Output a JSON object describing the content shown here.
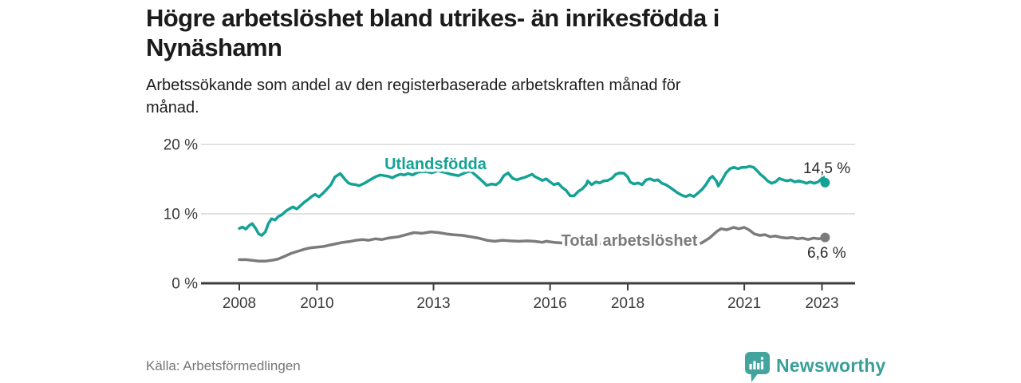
{
  "header": {
    "title": "Högre arbetslöshet bland utrikes- än inrikesfödda i\nNynäshamn",
    "subtitle": "Arbetssökande som andel av den registerbaserade arbetskraften månad för\nmånad."
  },
  "chart_data": {
    "type": "line",
    "unit": "%",
    "grid": "horizontal-only",
    "x_axis": {
      "range": [
        2007.0,
        2023.9
      ],
      "ticks": [
        2008,
        2010,
        2013,
        2016,
        2018,
        2021,
        2023
      ]
    },
    "y_axis": {
      "range": [
        0,
        21
      ],
      "ticks": [
        {
          "value": 0,
          "label": "0 %"
        },
        {
          "value": 10,
          "label": "10 %"
        },
        {
          "value": 20,
          "label": "20 %"
        }
      ]
    },
    "series": [
      {
        "name": "Utlandsfödda",
        "color": "#14a295",
        "end_label": "14,5 %",
        "end_value": 14.5,
        "points": [
          [
            2008.0,
            7.9
          ],
          [
            2008.08,
            8.1
          ],
          [
            2008.17,
            7.8
          ],
          [
            2008.25,
            8.3
          ],
          [
            2008.33,
            8.6
          ],
          [
            2008.42,
            7.9
          ],
          [
            2008.5,
            7.1
          ],
          [
            2008.58,
            6.9
          ],
          [
            2008.67,
            7.4
          ],
          [
            2008.75,
            8.6
          ],
          [
            2008.83,
            9.3
          ],
          [
            2008.92,
            9.1
          ],
          [
            2009.0,
            9.6
          ],
          [
            2009.1,
            9.9
          ],
          [
            2009.2,
            10.4
          ],
          [
            2009.27,
            10.65
          ],
          [
            2009.38,
            11.0
          ],
          [
            2009.48,
            10.7
          ],
          [
            2009.58,
            11.2
          ],
          [
            2009.68,
            11.7
          ],
          [
            2009.78,
            12.1
          ],
          [
            2009.85,
            12.45
          ],
          [
            2009.95,
            12.8
          ],
          [
            2010.05,
            12.45
          ],
          [
            2010.16,
            13.0
          ],
          [
            2010.26,
            13.6
          ],
          [
            2010.36,
            14.2
          ],
          [
            2010.46,
            15.3
          ],
          [
            2010.6,
            15.8
          ],
          [
            2010.73,
            14.9
          ],
          [
            2010.81,
            14.45
          ],
          [
            2010.87,
            14.3
          ],
          [
            2011.0,
            14.2
          ],
          [
            2011.08,
            14.05
          ],
          [
            2011.22,
            14.4
          ],
          [
            2011.32,
            14.75
          ],
          [
            2011.43,
            15.1
          ],
          [
            2011.53,
            15.4
          ],
          [
            2011.63,
            15.6
          ],
          [
            2011.74,
            15.5
          ],
          [
            2011.84,
            15.4
          ],
          [
            2011.94,
            15.2
          ],
          [
            2012.04,
            15.5
          ],
          [
            2012.15,
            15.7
          ],
          [
            2012.25,
            15.6
          ],
          [
            2012.35,
            15.8
          ],
          [
            2012.46,
            15.6
          ],
          [
            2012.6,
            16.0
          ],
          [
            2012.8,
            16.1
          ],
          [
            2012.95,
            15.9
          ],
          [
            2013.1,
            16.2
          ],
          [
            2013.27,
            16.0
          ],
          [
            2013.45,
            15.7
          ],
          [
            2013.64,
            15.5
          ],
          [
            2013.8,
            15.9
          ],
          [
            2013.95,
            16.2
          ],
          [
            2014.1,
            15.5
          ],
          [
            2014.22,
            14.9
          ],
          [
            2014.37,
            14.1
          ],
          [
            2014.5,
            14.3
          ],
          [
            2014.61,
            14.2
          ],
          [
            2014.71,
            14.6
          ],
          [
            2014.81,
            15.5
          ],
          [
            2014.92,
            15.9
          ],
          [
            2015.04,
            15.1
          ],
          [
            2015.15,
            14.9
          ],
          [
            2015.25,
            15.1
          ],
          [
            2015.35,
            15.25
          ],
          [
            2015.45,
            15.5
          ],
          [
            2015.54,
            15.7
          ],
          [
            2015.6,
            15.4
          ],
          [
            2015.7,
            15.1
          ],
          [
            2015.8,
            14.8
          ],
          [
            2015.9,
            15.05
          ],
          [
            2016.0,
            14.6
          ],
          [
            2016.1,
            14.2
          ],
          [
            2016.21,
            14.4
          ],
          [
            2016.31,
            13.8
          ],
          [
            2016.41,
            13.4
          ],
          [
            2016.52,
            12.6
          ],
          [
            2016.62,
            12.6
          ],
          [
            2016.72,
            13.2
          ],
          [
            2016.83,
            13.6
          ],
          [
            2016.93,
            14.2
          ],
          [
            2016.97,
            14.75
          ],
          [
            2017.07,
            14.2
          ],
          [
            2017.18,
            14.6
          ],
          [
            2017.28,
            14.45
          ],
          [
            2017.38,
            14.75
          ],
          [
            2017.48,
            14.8
          ],
          [
            2017.59,
            15.1
          ],
          [
            2017.69,
            15.7
          ],
          [
            2017.79,
            15.9
          ],
          [
            2017.9,
            15.85
          ],
          [
            2018.0,
            15.3
          ],
          [
            2018.06,
            14.6
          ],
          [
            2018.16,
            14.3
          ],
          [
            2018.27,
            14.45
          ],
          [
            2018.37,
            14.2
          ],
          [
            2018.47,
            14.9
          ],
          [
            2018.57,
            15.05
          ],
          [
            2018.68,
            14.8
          ],
          [
            2018.78,
            14.9
          ],
          [
            2018.88,
            14.4
          ],
          [
            2018.98,
            14.2
          ],
          [
            2019.09,
            13.8
          ],
          [
            2019.19,
            13.4
          ],
          [
            2019.29,
            13.0
          ],
          [
            2019.4,
            12.65
          ],
          [
            2019.5,
            12.5
          ],
          [
            2019.6,
            12.75
          ],
          [
            2019.7,
            12.5
          ],
          [
            2019.81,
            13.0
          ],
          [
            2019.91,
            13.5
          ],
          [
            2020.01,
            14.2
          ],
          [
            2020.11,
            15.1
          ],
          [
            2020.18,
            15.4
          ],
          [
            2020.28,
            14.75
          ],
          [
            2020.33,
            14.0
          ],
          [
            2020.43,
            14.9
          ],
          [
            2020.53,
            15.9
          ],
          [
            2020.63,
            16.5
          ],
          [
            2020.73,
            16.7
          ],
          [
            2020.84,
            16.5
          ],
          [
            2020.94,
            16.7
          ],
          [
            2021.04,
            16.7
          ],
          [
            2021.14,
            16.85
          ],
          [
            2021.24,
            16.7
          ],
          [
            2021.35,
            16.1
          ],
          [
            2021.41,
            15.7
          ],
          [
            2021.5,
            15.3
          ],
          [
            2021.6,
            14.75
          ],
          [
            2021.7,
            14.4
          ],
          [
            2021.8,
            14.6
          ],
          [
            2021.9,
            15.1
          ],
          [
            2022.0,
            14.9
          ],
          [
            2022.1,
            14.75
          ],
          [
            2022.2,
            14.9
          ],
          [
            2022.3,
            14.6
          ],
          [
            2022.4,
            14.75
          ],
          [
            2022.5,
            14.6
          ],
          [
            2022.6,
            14.4
          ],
          [
            2022.7,
            14.6
          ],
          [
            2022.8,
            14.4
          ],
          [
            2022.9,
            14.6
          ],
          [
            2023.0,
            15.1
          ],
          [
            2023.04,
            15.3
          ],
          [
            2023.08,
            14.5
          ]
        ]
      },
      {
        "name": "Total arbetslöshet",
        "color": "#7b7b7b",
        "end_label": "6,6 %",
        "end_value": 6.6,
        "points": [
          [
            2008.0,
            3.4
          ],
          [
            2008.17,
            3.4
          ],
          [
            2008.33,
            3.3
          ],
          [
            2008.5,
            3.2
          ],
          [
            2008.67,
            3.2
          ],
          [
            2008.83,
            3.3
          ],
          [
            2009.0,
            3.5
          ],
          [
            2009.17,
            3.9
          ],
          [
            2009.33,
            4.3
          ],
          [
            2009.5,
            4.6
          ],
          [
            2009.67,
            4.9
          ],
          [
            2009.83,
            5.1
          ],
          [
            2010.0,
            5.2
          ],
          [
            2010.17,
            5.3
          ],
          [
            2010.33,
            5.5
          ],
          [
            2010.5,
            5.7
          ],
          [
            2010.67,
            5.9
          ],
          [
            2010.83,
            6.0
          ],
          [
            2011.0,
            6.2
          ],
          [
            2011.17,
            6.3
          ],
          [
            2011.33,
            6.2
          ],
          [
            2011.5,
            6.4
          ],
          [
            2011.67,
            6.3
          ],
          [
            2011.83,
            6.5
          ],
          [
            2012.1,
            6.7
          ],
          [
            2012.3,
            7.0
          ],
          [
            2012.5,
            7.3
          ],
          [
            2012.7,
            7.2
          ],
          [
            2012.93,
            7.4
          ],
          [
            2013.13,
            7.3
          ],
          [
            2013.34,
            7.1
          ],
          [
            2013.5,
            7.0
          ],
          [
            2013.75,
            6.9
          ],
          [
            2013.95,
            6.7
          ],
          [
            2014.16,
            6.5
          ],
          [
            2014.37,
            6.2
          ],
          [
            2014.57,
            6.05
          ],
          [
            2014.78,
            6.2
          ],
          [
            2014.98,
            6.1
          ],
          [
            2015.2,
            6.05
          ],
          [
            2015.4,
            6.1
          ],
          [
            2015.6,
            6.05
          ],
          [
            2015.8,
            5.9
          ],
          [
            2015.9,
            6.05
          ],
          [
            2016.1,
            5.9
          ],
          [
            2016.3,
            5.8
          ],
          [
            2016.5,
            5.7
          ],
          [
            2016.7,
            5.8
          ],
          [
            2016.9,
            5.9
          ],
          [
            2017.1,
            5.8
          ],
          [
            2017.3,
            5.7
          ],
          [
            2017.5,
            5.8
          ],
          [
            2017.7,
            5.9
          ],
          [
            2017.9,
            5.8
          ],
          [
            2018.1,
            5.7
          ],
          [
            2018.3,
            5.6
          ],
          [
            2018.5,
            5.5
          ],
          [
            2018.7,
            5.6
          ],
          [
            2018.9,
            5.5
          ],
          [
            2019.1,
            5.4
          ],
          [
            2019.3,
            5.3
          ],
          [
            2019.5,
            5.4
          ],
          [
            2019.7,
            5.5
          ],
          [
            2019.9,
            5.8
          ],
          [
            2020.1,
            6.5
          ],
          [
            2020.3,
            7.5
          ],
          [
            2020.4,
            7.85
          ],
          [
            2020.55,
            7.7
          ],
          [
            2020.72,
            8.05
          ],
          [
            2020.86,
            7.85
          ],
          [
            2021.0,
            8.05
          ],
          [
            2021.12,
            7.7
          ],
          [
            2021.26,
            7.1
          ],
          [
            2021.4,
            6.9
          ],
          [
            2021.53,
            7.0
          ],
          [
            2021.67,
            6.7
          ],
          [
            2021.8,
            6.8
          ],
          [
            2021.95,
            6.6
          ],
          [
            2022.1,
            6.5
          ],
          [
            2022.23,
            6.6
          ],
          [
            2022.37,
            6.4
          ],
          [
            2022.5,
            6.5
          ],
          [
            2022.64,
            6.3
          ],
          [
            2022.78,
            6.5
          ],
          [
            2022.92,
            6.4
          ],
          [
            2023.08,
            6.6
          ]
        ]
      }
    ],
    "colors": {
      "accent_teal": "#14a295",
      "series_gray": "#7b7b7b",
      "gridline": "#d9d9d9",
      "axis": "#3d3d3d"
    }
  },
  "footer": {
    "source": "Källa: Arbetsförmedlingen",
    "brand": "Newsworthy"
  }
}
